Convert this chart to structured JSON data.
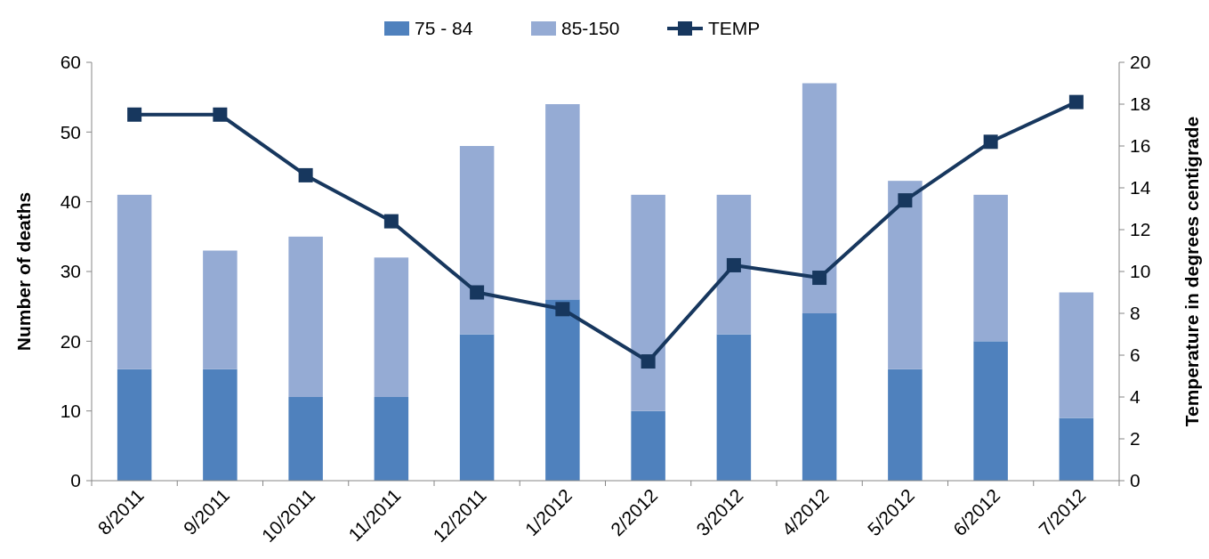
{
  "chart_data": {
    "type": "bar",
    "stacked": true,
    "ylabel": "Number of deaths",
    "y2label": "Temperature in degrees centigrade",
    "categories": [
      "8/2011",
      "9/2011",
      "10/2011",
      "11/2011",
      "12/2011",
      "1/2012",
      "2/2012",
      "3/2012",
      "4/2012",
      "5/2012",
      "6/2012",
      "7/2012"
    ],
    "series": [
      {
        "name": "75 - 84",
        "color": "#4f81bd",
        "values": [
          16,
          16,
          12,
          12,
          21,
          26,
          10,
          21,
          24,
          16,
          20,
          9
        ]
      },
      {
        "name": "85-150",
        "color": "#95abd4",
        "values": [
          25,
          17,
          23,
          20,
          27,
          28,
          31,
          20,
          33,
          27,
          21,
          18
        ]
      },
      {
        "name": "TEMP",
        "type": "line",
        "axis": "y2",
        "color": "#17375e",
        "marker": "square",
        "values": [
          17.5,
          17.5,
          14.6,
          12.4,
          9.0,
          8.2,
          5.7,
          10.3,
          9.7,
          13.4,
          16.2,
          18.1
        ]
      }
    ],
    "ylim": [
      0,
      60
    ],
    "yticks": [
      0,
      10,
      20,
      30,
      40,
      50,
      60
    ],
    "y2lim": [
      0,
      20
    ],
    "y2ticks": [
      0,
      2,
      4,
      6,
      8,
      10,
      12,
      14,
      16,
      18,
      20
    ],
    "grid": false,
    "legend": "top"
  }
}
